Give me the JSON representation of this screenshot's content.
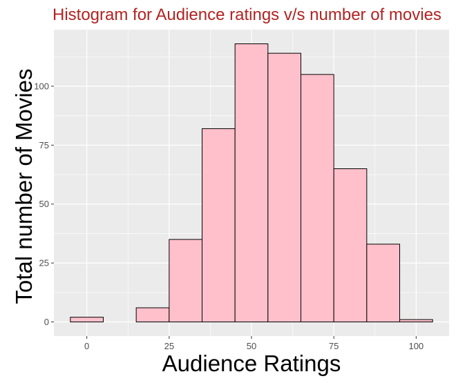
{
  "chart_data": {
    "type": "bar",
    "title": "Histogram for Audience ratings v/s number of movies",
    "xlabel": "Audience Ratings",
    "ylabel": "Total number of Movies",
    "bin_width": 10,
    "bin_centers": [
      0,
      10,
      20,
      30,
      40,
      50,
      60,
      70,
      80,
      90,
      100
    ],
    "values": [
      2,
      0,
      6,
      35,
      82,
      118,
      114,
      105,
      65,
      33,
      1
    ],
    "xlim": [
      -10,
      110
    ],
    "ylim": [
      -6,
      124
    ],
    "x_ticks": [
      0,
      25,
      50,
      75,
      100
    ],
    "y_ticks": [
      0,
      25,
      50,
      75,
      100
    ],
    "x_tick_labels": [
      "0",
      "25",
      "50",
      "75",
      "100"
    ],
    "y_tick_labels": [
      "0",
      "25",
      "50",
      "75",
      "100"
    ],
    "grid": true,
    "panel_background": "#ebebeb",
    "grid_color": "#ffffff",
    "bar_fill": "#ffc0cb",
    "bar_outline": "#000000",
    "title_color": "#b22222"
  }
}
